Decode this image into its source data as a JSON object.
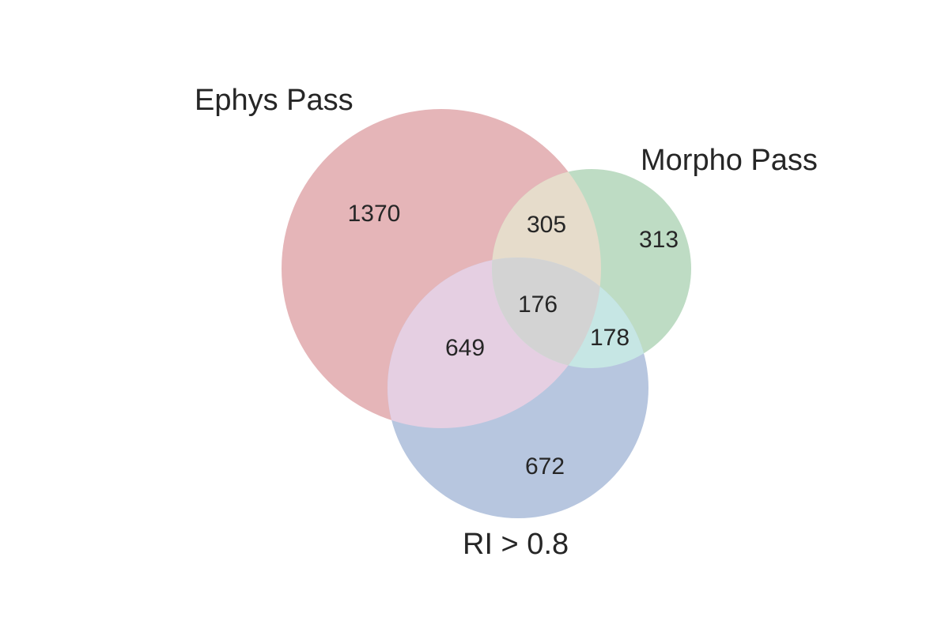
{
  "sets": {
    "ephys": {
      "label": "Ephys Pass",
      "color": "#e5b5b8"
    },
    "morpho": {
      "label": "Morpho Pass",
      "color": "#bedcc4"
    },
    "ri": {
      "label": "RI > 0.8",
      "color": "#b7c6df"
    }
  },
  "overlap_colors": {
    "ephys_morpho": "#e6dccb",
    "ephys_ri": "#e5cfe2",
    "morpho_ri": "#c6e6e4",
    "all": "#d3d3d3"
  },
  "regions": {
    "ephys_only": "1370",
    "morpho_only": "313",
    "ri_only": "672",
    "ephys_morpho": "305",
    "ephys_ri": "649",
    "morpho_ri": "178",
    "all": "176"
  }
}
